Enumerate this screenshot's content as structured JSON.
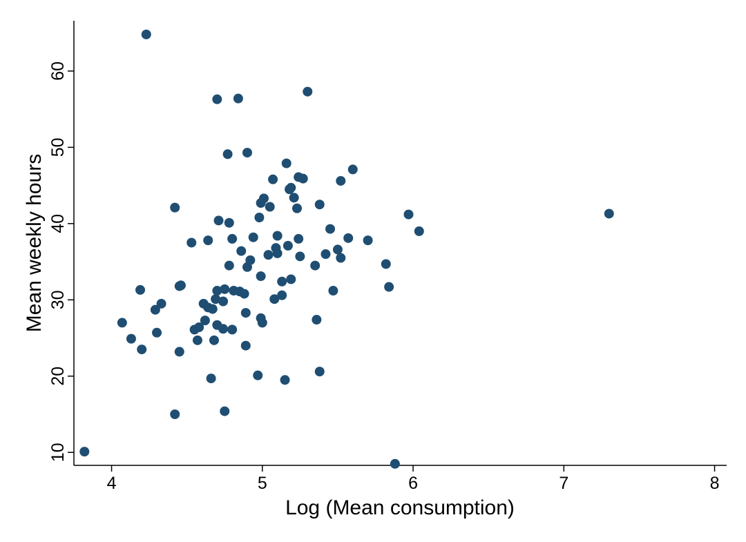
{
  "chart_data": {
    "type": "scatter",
    "xlabel": "Log (Mean consumption)",
    "ylabel": "Mean weekly hours",
    "xlim": [
      3.75,
      8.08
    ],
    "ylim": [
      8.3,
      66.6
    ],
    "xticks": [
      "4",
      "5",
      "6",
      "7",
      "8"
    ],
    "yticks": [
      "10",
      "20",
      "30",
      "40",
      "50",
      "60"
    ],
    "grid": false,
    "marker_color": "#1f4e72",
    "series": [
      {
        "x": [
          3.82,
          4.23,
          4.7,
          4.84,
          5.3,
          4.77,
          4.9,
          5.16,
          5.24,
          5.27,
          5.07,
          5.19,
          5.18,
          5.21,
          5.01,
          4.99,
          5.05,
          5.23,
          5.38,
          5.52,
          5.6,
          4.42,
          4.71,
          4.78,
          4.98,
          5.97,
          6.04,
          7.3,
          5.45,
          4.53,
          4.64,
          4.8,
          4.94,
          5.1,
          5.17,
          5.24,
          5.57,
          5.7,
          4.86,
          4.92,
          5.04,
          5.09,
          5.1,
          5.25,
          5.42,
          5.5,
          5.52,
          4.78,
          4.9,
          4.99,
          5.13,
          5.19,
          5.35,
          5.82,
          4.45,
          4.46,
          4.19,
          4.7,
          4.75,
          4.81,
          4.85,
          4.88,
          5.08,
          5.13,
          5.47,
          5.84,
          4.33,
          4.29,
          4.61,
          4.64,
          4.67,
          4.69,
          4.74,
          4.07,
          4.62,
          4.7,
          4.74,
          4.8,
          4.89,
          4.99,
          5.0,
          5.36,
          4.3,
          4.58,
          4.55,
          4.13,
          4.57,
          4.68,
          4.2,
          4.45,
          4.89,
          5.38,
          4.97,
          4.66,
          5.15,
          4.42,
          4.75,
          5.88
        ],
        "y": [
          10.1,
          64.8,
          56.3,
          56.4,
          57.3,
          49.1,
          49.3,
          47.9,
          46.1,
          45.9,
          45.8,
          44.7,
          44.5,
          43.4,
          43.3,
          42.7,
          42.2,
          42.0,
          42.5,
          45.6,
          47.1,
          42.1,
          40.4,
          40.1,
          40.8,
          41.2,
          39.0,
          41.3,
          39.3,
          37.5,
          37.8,
          38.0,
          38.2,
          38.4,
          37.1,
          38.0,
          38.1,
          37.8,
          36.4,
          35.2,
          35.9,
          36.8,
          36.1,
          35.7,
          36.0,
          36.6,
          35.5,
          34.5,
          34.3,
          33.1,
          32.4,
          32.7,
          34.5,
          34.7,
          31.8,
          31.9,
          31.3,
          31.2,
          31.4,
          31.2,
          31.1,
          30.8,
          30.1,
          30.6,
          31.2,
          31.7,
          29.5,
          28.7,
          29.5,
          29.0,
          28.8,
          30.1,
          29.8,
          27.0,
          27.3,
          26.7,
          26.2,
          26.1,
          28.3,
          27.6,
          27.0,
          27.4,
          25.7,
          26.4,
          26.1,
          24.9,
          24.7,
          24.7,
          23.5,
          23.2,
          24.0,
          20.6,
          20.1,
          19.7,
          19.5,
          15.0,
          15.4,
          8.5
        ]
      }
    ]
  }
}
